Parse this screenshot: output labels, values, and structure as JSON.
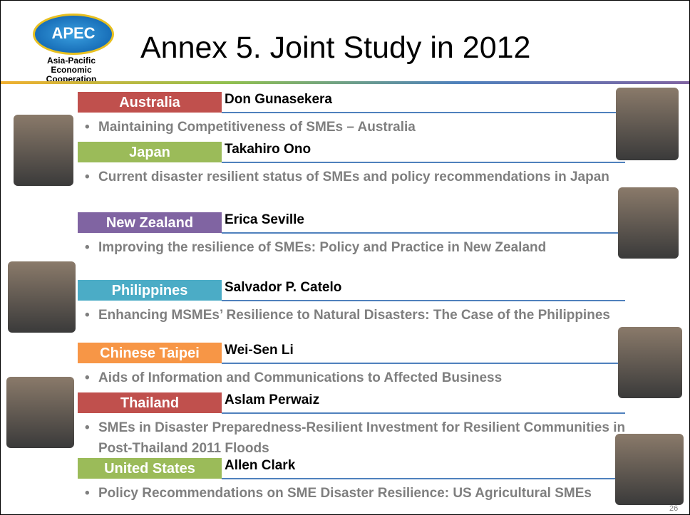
{
  "header": {
    "logo_text": "APEC",
    "logo_caption": [
      "Asia-Pacific",
      "Economic Cooperation"
    ],
    "title": "Annex 5. Joint Study in 2012"
  },
  "entries": [
    {
      "economy": "Australia",
      "author": "Don Gunasekera",
      "topic": "Maintaining Competitiveness of SMEs – Australia"
    },
    {
      "economy": "Japan",
      "author": "Takahiro Ono",
      "topic": "Current disaster resilient status of SMEs and policy recommendations in Japan"
    },
    {
      "economy": "New Zealand",
      "author": "Erica Seville",
      "topic": "Improving the resilience of SMEs: Policy and Practice in New Zealand"
    },
    {
      "economy": "Philippines",
      "author": "Salvador P. Catelo",
      "topic": "Enhancing MSMEs’ Resilience to Natural Disasters: The Case of the Philippines"
    },
    {
      "economy": "Chinese Taipei",
      "author": "Wei-Sen Li",
      "topic": "Aids of Information and Communications to Affected Business"
    },
    {
      "economy": "Thailand",
      "author": "Aslam Perwaiz",
      "topic": "SMEs in Disaster Preparedness-Resilient Investment for Resilient Communities in Post-Thailand 2011 Floods"
    },
    {
      "economy": "United States",
      "author": "Allen Clark",
      "topic": "Policy Recommendations on SME Disaster Resilience: US Agricultural SMEs"
    }
  ],
  "page_number": "26"
}
